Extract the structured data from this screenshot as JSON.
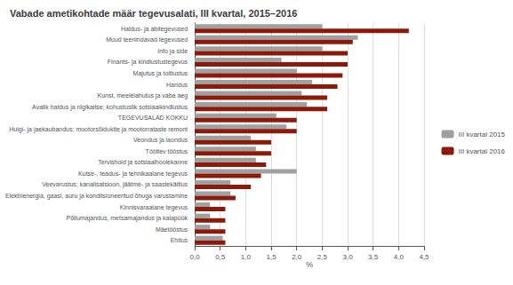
{
  "chart_data": {
    "type": "bar",
    "orientation": "horizontal",
    "title": "Vabade ametikohtade määr tegevusalati, III kvartal, 2015–2016",
    "xlabel": "%",
    "categories": [
      "Haldus- ja abitegevused",
      "Muud teenindavad tegevused",
      "Info ja side",
      "Finants- ja kindlustustegevus",
      "Majutus ja toitlustus",
      "Haridus",
      "Kunst, meelelahutus ja vaba aeg",
      "Avalik haldus ja riigikaitse; kohustuslik sotsiaalkindlustus",
      "TEGEVUSALAD KOKKU",
      "Hulgi- ja jaekaubandus; mootorsõidukite ja mootorrataste remont",
      "Veondus ja laondus",
      "Töötlev tööstus",
      "Tervishoid ja sotsiaalhoolekanne",
      "Kutse-, teadus- ja tehnikaalane tegevus",
      "Veevarustus; kanalisatsioon, jäätme- ja saastekäitlus",
      "Elektrienergia, gaasi, auru ja konditsioneeritud õhuga varustamine",
      "Kinnisvaraalane tegevus",
      "Põllumajandus, metsamajandus ja kalapüük",
      "Mäetööstus",
      "Ehitus"
    ],
    "series": [
      {
        "name": "III kvartal 2015",
        "color": "#a0a0a0",
        "values": [
          2.5,
          3.2,
          2.5,
          1.7,
          2.0,
          2.3,
          2.1,
          2.2,
          1.6,
          1.8,
          1.1,
          1.2,
          1.2,
          2.0,
          0.7,
          0.7,
          0.3,
          0.3,
          0.3,
          0.55
        ]
      },
      {
        "name": "III kvartal 2016",
        "color": "#8b1a0a",
        "values": [
          4.2,
          3.1,
          3.0,
          3.0,
          2.9,
          2.8,
          2.6,
          2.6,
          2.0,
          2.0,
          1.5,
          1.5,
          1.4,
          1.3,
          1.1,
          0.8,
          0.6,
          0.6,
          0.6,
          0.6
        ]
      }
    ],
    "xlim": [
      0,
      4.5
    ],
    "xticks": [
      {
        "value": 0.0,
        "label": "0,0"
      },
      {
        "value": 0.5,
        "label": "0,5"
      },
      {
        "value": 1.0,
        "label": "1,0"
      },
      {
        "value": 1.5,
        "label": "1,5"
      },
      {
        "value": 2.0,
        "label": "2,0"
      },
      {
        "value": 2.5,
        "label": "2,5"
      },
      {
        "value": 3.0,
        "label": "3,0"
      },
      {
        "value": 3.5,
        "label": "3,5"
      },
      {
        "value": 4.0,
        "label": "4,0"
      },
      {
        "value": 4.5,
        "label": "4,5"
      }
    ],
    "grid": true,
    "legend": "right"
  }
}
